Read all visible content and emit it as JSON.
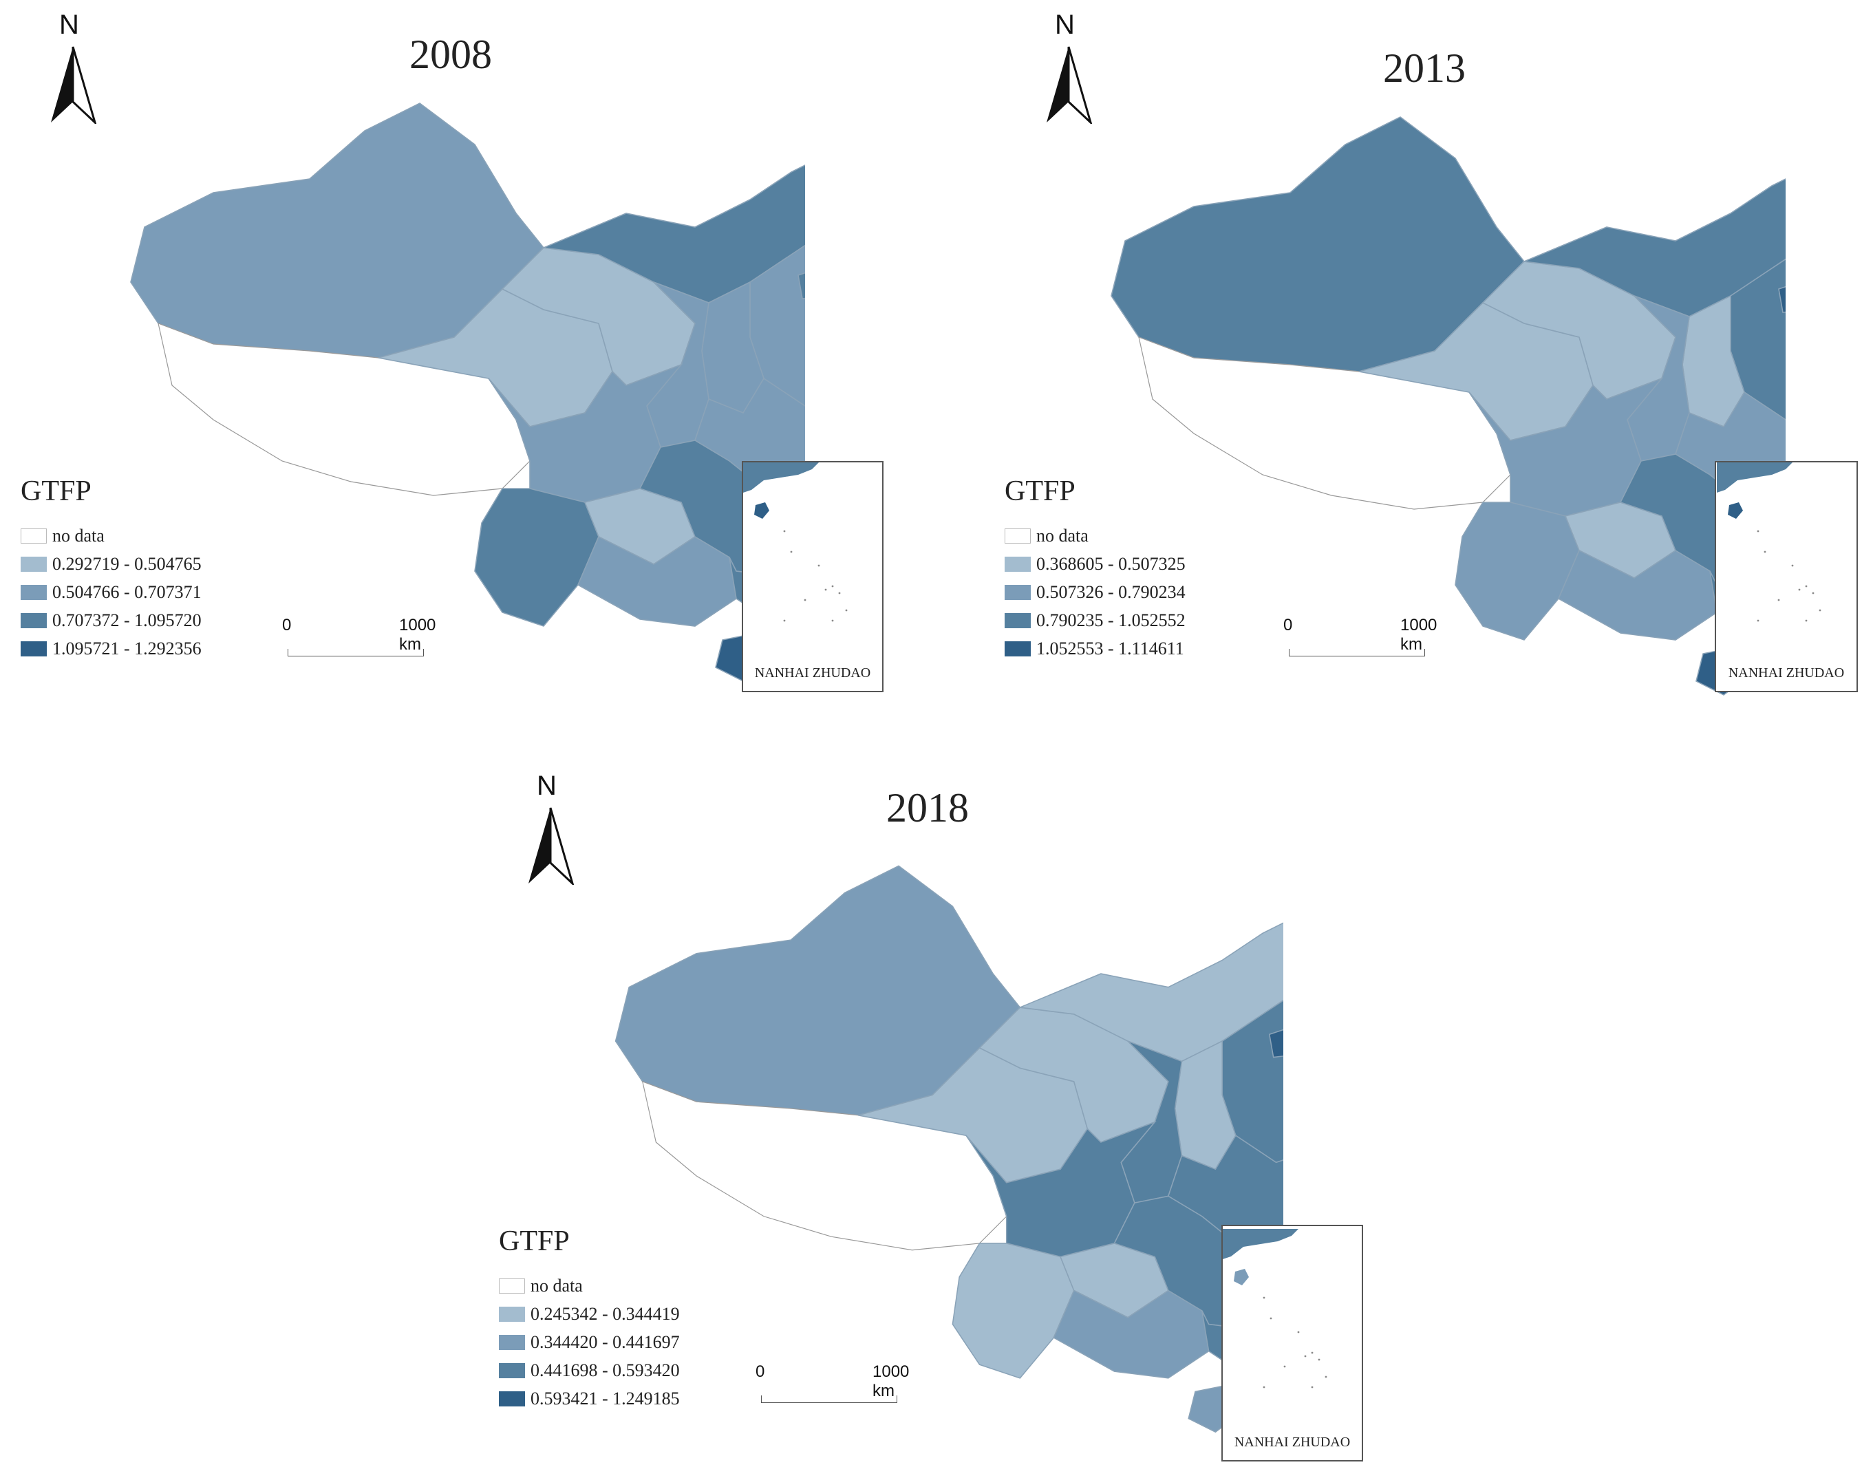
{
  "map_colors": {
    "nodata": "#ffffff",
    "class1": "#a3bccf",
    "class2": "#7b9cb8",
    "class3": "#55809f",
    "class4": "#2f5f87",
    "border": "#8aa3b8",
    "outline": "#999999"
  },
  "north_label": "N",
  "scale": {
    "zero": "0",
    "distance": "1000",
    "unit": "km"
  },
  "inset_label": "NANHAI ZHUDAO",
  "panels": [
    {
      "year": "2008",
      "legend": {
        "title": "GTFP",
        "nodata": "no data",
        "classes": [
          "0.292719 - 0.504765",
          "0.504766 - 0.707371",
          "0.707372 - 1.095720",
          "1.095721 - 1.292356"
        ]
      }
    },
    {
      "year": "2013",
      "legend": {
        "title": "GTFP",
        "nodata": "no data",
        "classes": [
          "0.368605 - 0.507325",
          "0.507326 - 0.790234",
          "0.790235 - 1.052552",
          "1.052553 - 1.114611"
        ]
      }
    },
    {
      "year": "2018",
      "legend": {
        "title": "GTFP",
        "nodata": "no data",
        "classes": [
          "0.245342 - 0.344419",
          "0.344420 - 0.441697",
          "0.441698 - 0.593420",
          "0.593421 - 1.249185"
        ]
      }
    }
  ],
  "regions": [
    {
      "id": "xinjiang",
      "classes": [
        2,
        3,
        2
      ]
    },
    {
      "id": "tibet",
      "classes": [
        0,
        0,
        0
      ]
    },
    {
      "id": "qinghai",
      "classes": [
        1,
        1,
        1
      ]
    },
    {
      "id": "gansu",
      "classes": [
        1,
        1,
        1
      ]
    },
    {
      "id": "inner-mongolia",
      "classes": [
        3,
        3,
        1
      ]
    },
    {
      "id": "heilongjiang",
      "classes": [
        3,
        3,
        2
      ]
    },
    {
      "id": "jilin",
      "classes": [
        2,
        3,
        3
      ]
    },
    {
      "id": "liaoning",
      "classes": [
        2,
        3,
        2
      ]
    },
    {
      "id": "north-china",
      "classes": [
        2,
        3,
        3
      ]
    },
    {
      "id": "shanxi",
      "classes": [
        2,
        1,
        1
      ]
    },
    {
      "id": "shaanxi",
      "classes": [
        2,
        2,
        3
      ]
    },
    {
      "id": "sichuan",
      "classes": [
        2,
        2,
        3
      ]
    },
    {
      "id": "central",
      "classes": [
        2,
        2,
        3
      ]
    },
    {
      "id": "east",
      "classes": [
        3,
        3,
        2
      ]
    },
    {
      "id": "yunnan",
      "classes": [
        3,
        2,
        1
      ]
    },
    {
      "id": "guizhou",
      "classes": [
        1,
        1,
        1
      ]
    },
    {
      "id": "guangxi",
      "classes": [
        2,
        2,
        2
      ]
    },
    {
      "id": "hunan",
      "classes": [
        3,
        3,
        3
      ]
    },
    {
      "id": "guangdong",
      "classes": [
        3,
        3,
        3
      ]
    },
    {
      "id": "hainan",
      "classes": [
        4,
        4,
        2
      ]
    },
    {
      "id": "beijing",
      "classes": [
        3,
        4,
        4
      ]
    }
  ]
}
